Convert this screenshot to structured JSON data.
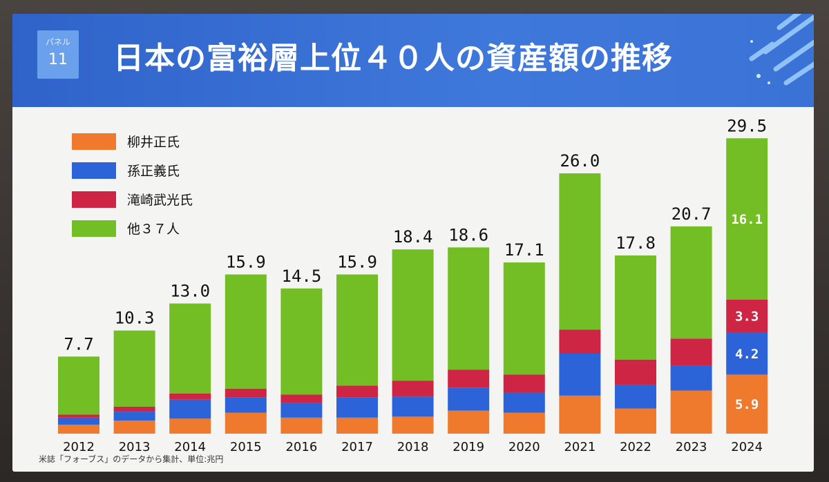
{
  "header": {
    "panel_label": "パネル",
    "panel_number": "11",
    "title": "日本の富裕層上位４０人の資産額の推移"
  },
  "source_note": "米誌「フォーブス」のデータから集計、単位:兆円",
  "chart_data": {
    "type": "bar",
    "stacked": true,
    "categories": [
      "2012",
      "2013",
      "2014",
      "2015",
      "2016",
      "2017",
      "2018",
      "2019",
      "2020",
      "2021",
      "2022",
      "2023",
      "2024"
    ],
    "totals": [
      "7.7",
      "10.3",
      "13.0",
      "15.9",
      "14.5",
      "15.9",
      "18.4",
      "18.6",
      "17.1",
      "26.0",
      "17.8",
      "20.7",
      "29.5"
    ],
    "series": [
      {
        "name": "柳井正氏",
        "color": "#ef7a2e",
        "values": [
          0.9,
          1.3,
          1.5,
          2.1,
          1.6,
          1.6,
          1.7,
          2.3,
          2.1,
          3.8,
          2.5,
          4.3,
          5.9
        ]
      },
      {
        "name": "孫正義氏",
        "color": "#2c63d8",
        "values": [
          0.7,
          0.9,
          1.9,
          1.5,
          1.5,
          2.0,
          2.0,
          2.3,
          2.0,
          4.2,
          2.4,
          2.5,
          4.2
        ]
      },
      {
        "name": "滝崎武光氏",
        "color": "#cf2545",
        "values": [
          0.3,
          0.5,
          0.6,
          0.9,
          0.8,
          1.2,
          1.6,
          1.8,
          1.8,
          2.4,
          2.5,
          2.7,
          3.3
        ]
      },
      {
        "name": "他３７人",
        "color": "#73bd25",
        "values": [
          5.8,
          7.6,
          9.0,
          11.4,
          10.6,
          11.1,
          13.1,
          12.2,
          11.2,
          15.6,
          10.4,
          11.2,
          16.1
        ]
      }
    ],
    "inner_labels": {
      "2024": [
        "5.9",
        "4.2",
        "3.3",
        "16.1"
      ]
    },
    "ylim": [
      0,
      32
    ],
    "legend_position": "top-left",
    "grid": false
  }
}
